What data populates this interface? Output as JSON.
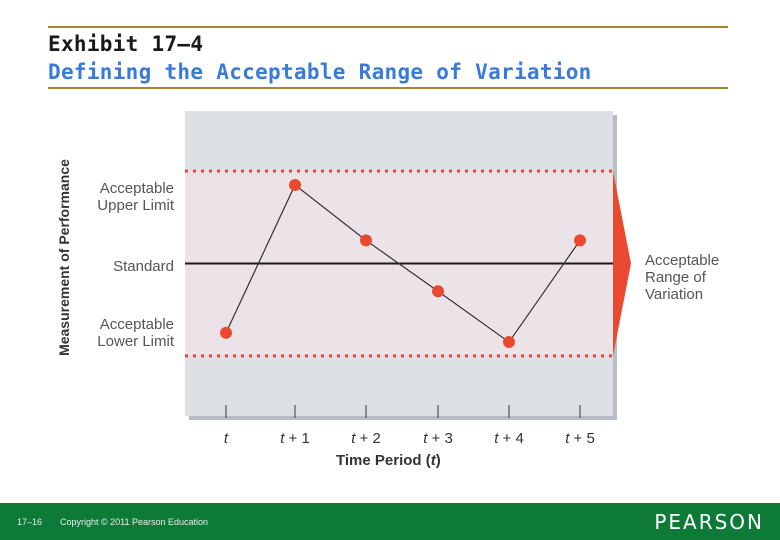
{
  "header": {
    "title_line1": "Exhibit 17–4",
    "title_line2": "Defining the Acceptable Range of Variation"
  },
  "chart_data": {
    "type": "line",
    "xlabel_prefix": "Time Period (",
    "xlabel_var": "t",
    "xlabel_suffix": ")",
    "ylabel": "Measurement of Performance",
    "x": [
      {
        "var": "t",
        "suffix": ""
      },
      {
        "var": "t",
        "suffix": " + 1"
      },
      {
        "var": "t",
        "suffix": " + 2"
      },
      {
        "var": "t",
        "suffix": " + 3"
      },
      {
        "var": "t",
        "suffix": " + 4"
      },
      {
        "var": "t",
        "suffix": " + 5"
      }
    ],
    "values": [
      -0.75,
      0.85,
      0.25,
      -0.3,
      -0.85,
      0.25
    ],
    "ylim": [
      -1.65,
      1.65
    ],
    "reference_lines": {
      "upper": {
        "value": 1.0,
        "label_line1": "Acceptable",
        "label_line2": "Upper Limit"
      },
      "standard": {
        "value": 0.0,
        "label": "Standard"
      },
      "lower": {
        "value": -1.0,
        "label_line1": "Acceptable",
        "label_line2": "Lower Limit"
      }
    },
    "range_label": {
      "line1": "Acceptable",
      "line2": "Range of",
      "line3": "Variation"
    },
    "colors": {
      "plot_bg": "#dcdfe4",
      "band_fill": "#ebe3e8",
      "marker": "#e8492f",
      "limit_line": "#e8492f",
      "standard_line": "#1a1a1a",
      "series_line": "#333333",
      "arrow": "#e8492f"
    }
  },
  "footer": {
    "page_number": "17–16",
    "copyright": "Copyright © 2011 Pearson Education",
    "brand": "PEARSON"
  }
}
